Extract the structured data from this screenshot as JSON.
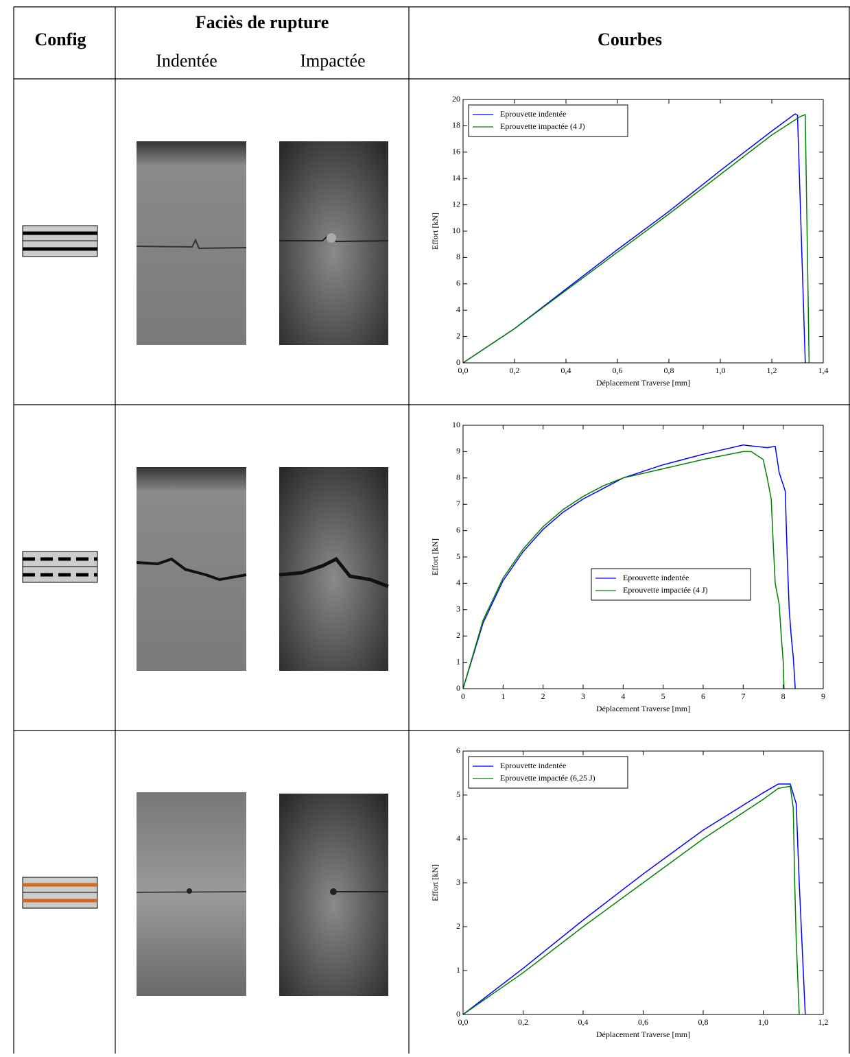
{
  "table": {
    "header": {
      "config": "Config",
      "facies": "Faciès de rupture",
      "indentee": "Indentée",
      "impactee": "Impactée",
      "courbes": "Courbes"
    }
  },
  "chart_data": [
    {
      "type": "line",
      "xlabel": "Déplacement Traverse [mm]",
      "ylabel": "Effort [kN]",
      "xlim": [
        0,
        1.4
      ],
      "ylim": [
        0,
        20
      ],
      "xticks": [
        {
          "value": 0,
          "label": "0,0"
        },
        {
          "value": 0.2,
          "label": "0,2"
        },
        {
          "value": 0.4,
          "label": "0,4"
        },
        {
          "value": 0.6,
          "label": "0,6"
        },
        {
          "value": 0.8,
          "label": "0,8"
        },
        {
          "value": 1.0,
          "label": "1,0"
        },
        {
          "value": 1.2,
          "label": "1,2"
        },
        {
          "value": 1.4,
          "label": "1,4"
        }
      ],
      "yticks": [
        0,
        2,
        4,
        6,
        8,
        10,
        12,
        14,
        16,
        18,
        20
      ],
      "legend": "upper left",
      "series": [
        {
          "name": "Eprouvette indentée",
          "color": "#0000ff",
          "x": [
            0,
            0.2,
            0.4,
            0.6,
            0.8,
            1.0,
            1.2,
            1.29,
            1.3,
            1.33
          ],
          "values": [
            0,
            2.6,
            5.6,
            8.6,
            11.5,
            14.6,
            17.6,
            18.9,
            18.8,
            0
          ]
        },
        {
          "name": "Eprouvette impactée (4 J)",
          "color": "#008000",
          "x": [
            0,
            0.2,
            0.4,
            0.6,
            0.8,
            1.0,
            1.2,
            1.31,
            1.33,
            1.345
          ],
          "values": [
            0,
            2.6,
            5.5,
            8.4,
            11.3,
            14.3,
            17.3,
            18.7,
            18.85,
            0
          ]
        }
      ]
    },
    {
      "type": "line",
      "xlabel": "Déplacement Traverse [mm]",
      "ylabel": "Effort [kN]",
      "xlim": [
        0,
        9
      ],
      "ylim": [
        0,
        10
      ],
      "xticks": [
        0,
        1,
        2,
        3,
        4,
        5,
        6,
        7,
        8,
        9
      ],
      "yticks": [
        0,
        1,
        2,
        3,
        4,
        5,
        6,
        7,
        8,
        9,
        10
      ],
      "legend": "center right",
      "series": [
        {
          "name": "Eprouvette indentée",
          "color": "#0000ff",
          "x": [
            0,
            0.5,
            1,
            1.5,
            2,
            2.5,
            3,
            3.5,
            4,
            5,
            6,
            7,
            7.3,
            7.6,
            7.8,
            7.9,
            8.05,
            8.1,
            8.15,
            8.2,
            8.25,
            8.3
          ],
          "values": [
            0,
            2.5,
            4.1,
            5.2,
            6.05,
            6.7,
            7.2,
            7.6,
            8.0,
            8.5,
            8.9,
            9.25,
            9.2,
            9.15,
            9.2,
            8.2,
            7.5,
            5,
            3,
            2,
            1.2,
            0
          ]
        },
        {
          "name": "Eprouvette impactée (4 J)",
          "color": "#008000",
          "x": [
            0,
            0.5,
            1,
            1.5,
            2,
            2.5,
            3,
            3.5,
            4,
            5,
            6,
            7,
            7.2,
            7.5,
            7.6,
            7.7,
            7.75,
            7.8,
            7.9,
            7.95,
            8.0,
            8.02
          ],
          "values": [
            0,
            2.6,
            4.2,
            5.3,
            6.15,
            6.8,
            7.3,
            7.7,
            8.0,
            8.35,
            8.7,
            9.0,
            9.0,
            8.7,
            8.0,
            7.2,
            5.5,
            4,
            3.2,
            2,
            1,
            0
          ]
        }
      ]
    },
    {
      "type": "line",
      "xlabel": "Déplacement Traverse [mm]",
      "ylabel": "Effort [kN]",
      "xlim": [
        0,
        1.2
      ],
      "ylim": [
        0,
        6
      ],
      "xticks": [
        {
          "value": 0,
          "label": "0,0"
        },
        {
          "value": 0.2,
          "label": "0,2"
        },
        {
          "value": 0.4,
          "label": "0,4"
        },
        {
          "value": 0.6,
          "label": "0,6"
        },
        {
          "value": 0.8,
          "label": "0,8"
        },
        {
          "value": 1.0,
          "label": "1,0"
        },
        {
          "value": 1.2,
          "label": "1,2"
        }
      ],
      "yticks": [
        0,
        1,
        2,
        3,
        4,
        5,
        6
      ],
      "legend": "upper left",
      "series": [
        {
          "name": "Eprouvette indentée",
          "color": "#0000ff",
          "x": [
            0,
            0.2,
            0.4,
            0.6,
            0.8,
            1.0,
            1.05,
            1.09,
            1.11,
            1.12,
            1.13,
            1.14
          ],
          "values": [
            0,
            1.05,
            2.15,
            3.2,
            4.2,
            5.05,
            5.25,
            5.25,
            4.8,
            3.0,
            1.5,
            0
          ]
        },
        {
          "name": "Eprouvette impactée (6,25 J)",
          "color": "#008000",
          "x": [
            0,
            0.2,
            0.4,
            0.6,
            0.8,
            1.0,
            1.05,
            1.09,
            1.1,
            1.105,
            1.11,
            1.12
          ],
          "values": [
            0,
            0.95,
            2.0,
            3.0,
            4.0,
            4.9,
            5.15,
            5.2,
            4.7,
            3.0,
            1.7,
            0
          ]
        }
      ]
    }
  ]
}
